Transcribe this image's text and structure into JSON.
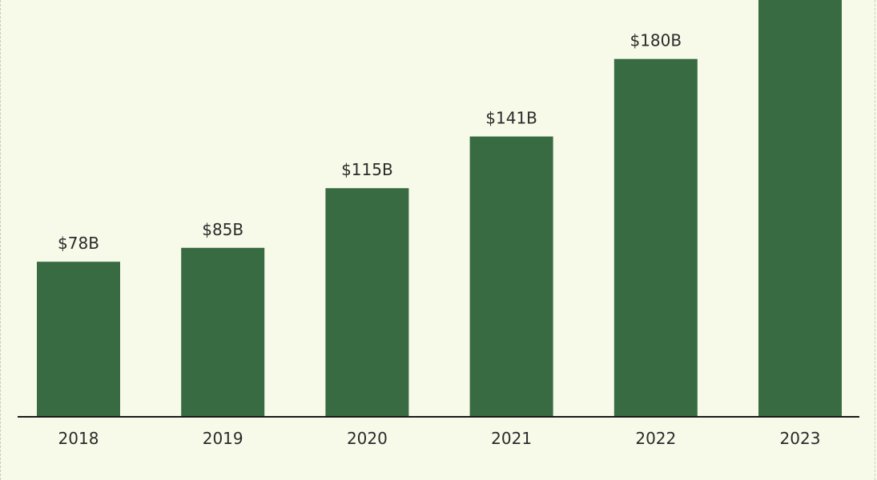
{
  "chart_data": {
    "type": "bar",
    "categories": [
      "2018",
      "2019",
      "2020",
      "2021",
      "2022",
      "2023"
    ],
    "values": [
      78,
      85,
      115,
      141,
      180,
      210
    ],
    "data_labels": [
      "$78B",
      "$85B",
      "$115B",
      "$141B",
      "$180B",
      ""
    ],
    "title": "",
    "xlabel": "",
    "ylabel": "",
    "grid": false,
    "colors": {
      "bar": "#386b42",
      "axis": "#1a1a1a",
      "background": "#f8fae9"
    }
  }
}
